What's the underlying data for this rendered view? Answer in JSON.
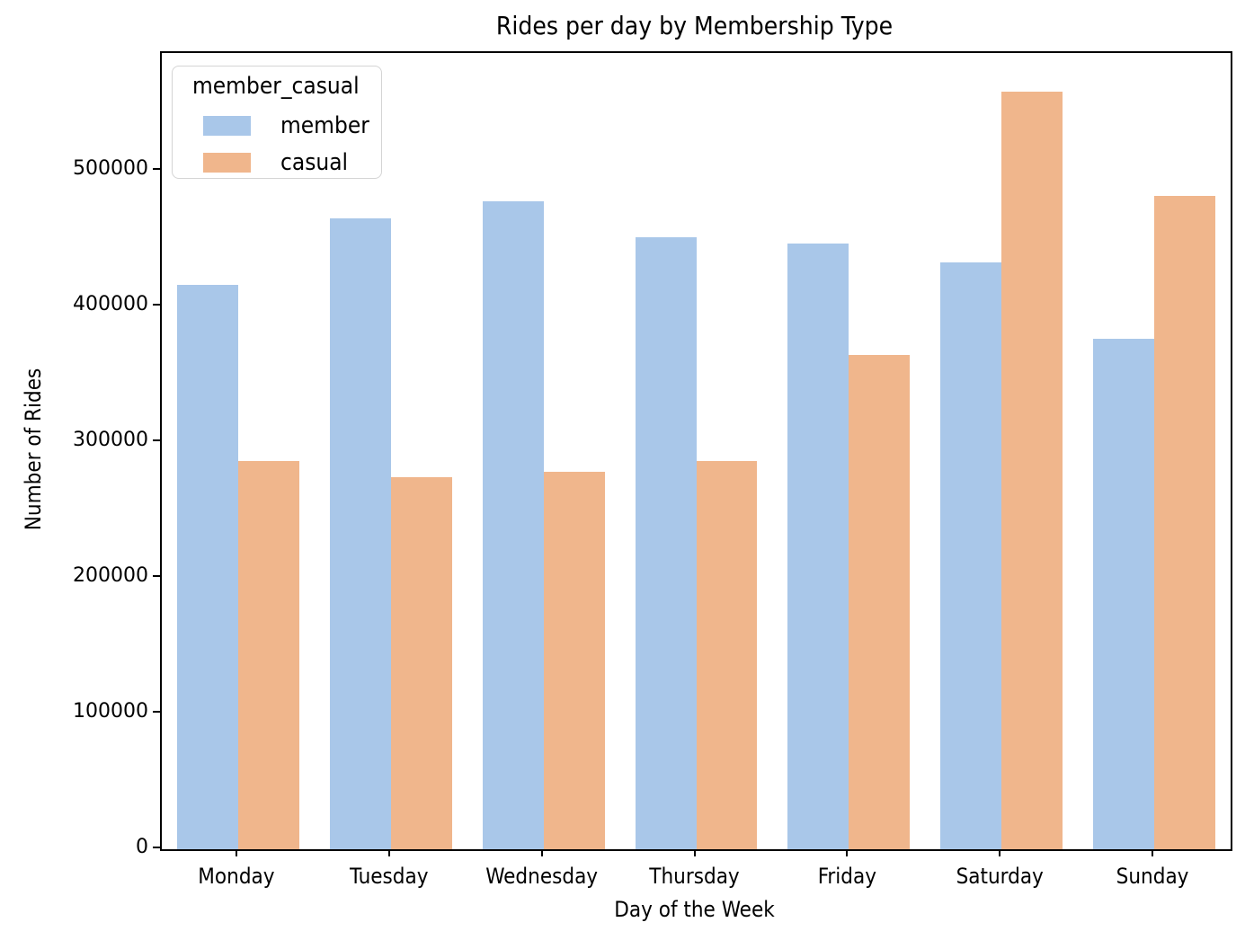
{
  "chart_data": {
    "type": "bar",
    "title": "Rides per day by Membership Type",
    "xlabel": "Day of the Week",
    "ylabel": "Number of Rides",
    "categories": [
      "Monday",
      "Tuesday",
      "Wednesday",
      "Thursday",
      "Friday",
      "Saturday",
      "Sunday"
    ],
    "series": [
      {
        "name": "member",
        "color": "#a9c7e9",
        "values": [
          416000,
          465000,
          477000,
          451000,
          446000,
          432000,
          376000
        ]
      },
      {
        "name": "casual",
        "color": "#f0b68c",
        "values": [
          286000,
          274000,
          278000,
          286000,
          364000,
          558000,
          481000
        ]
      }
    ],
    "legend": {
      "title": "member_casual",
      "position": "upper left"
    },
    "yticks": [
      0,
      100000,
      200000,
      300000,
      400000,
      500000
    ],
    "ylim": [
      0,
      586500
    ],
    "grid": false,
    "bar_orientation": "vertical"
  }
}
